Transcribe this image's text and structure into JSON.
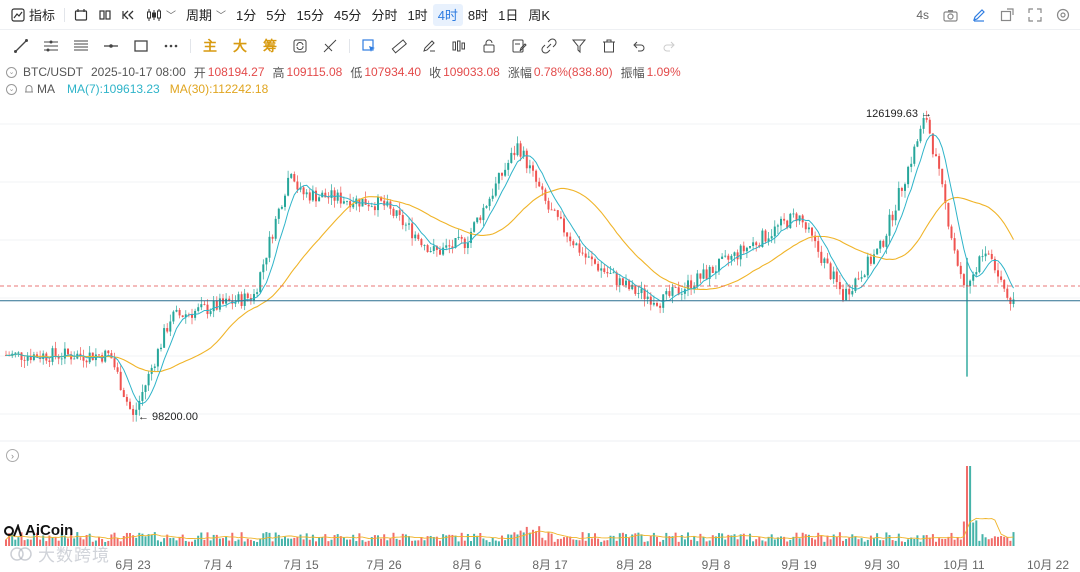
{
  "toolbar": {
    "indicator_label": "指标",
    "period_label": "周期",
    "intervals": [
      "1分",
      "5分",
      "15分",
      "45分",
      "分时",
      "1时",
      "4时",
      "8时",
      "1日",
      "周K"
    ],
    "active_interval": "4时",
    "refresh_label": "4s"
  },
  "drawing_tools": {
    "main_label": "主",
    "big_label": "大",
    "chip_label": "筹"
  },
  "info": {
    "pair": "BTC/USDT",
    "datetime": "2025-10-17 08:00",
    "open_label": "开",
    "open": "108194.27",
    "high_label": "高",
    "high": "109115.08",
    "low_label": "低",
    "low": "107934.40",
    "close_label": "收",
    "close": "109033.08",
    "change_label": "涨幅",
    "change": "0.78%(838.80)",
    "amp_label": "振幅",
    "amp": "1.09%"
  },
  "ma": {
    "label": "MA",
    "ma7": "MA(7):109613.23",
    "ma30": "MA(30):112242.18"
  },
  "annotations": {
    "high_marker": "126199.63 →",
    "low_marker": "← 98200.00"
  },
  "branding": {
    "logo": "AiCoin",
    "watermark": "大数跨境"
  },
  "colors": {
    "up": "#26a69a",
    "down": "#ef5350",
    "ma7": "#2fb4c9",
    "ma30": "#f0b429",
    "accent": "#2f7de1"
  },
  "date_axis": [
    "6月 23",
    "7月 4",
    "7月 15",
    "7月 26",
    "8月 6",
    "8月 17",
    "8月 28",
    "9月 8",
    "9月 19",
    "9月 30",
    "10月 11",
    "10月 22"
  ],
  "chart_data": {
    "type": "candlestick",
    "price_range": [
      96500,
      128000
    ],
    "key_points": [
      {
        "date": "6月 20",
        "price": 104000
      },
      {
        "date": "6月 23",
        "price": 98200
      },
      {
        "date": "6月 28",
        "price": 107500
      },
      {
        "date": "7月 4",
        "price": 108500
      },
      {
        "date": "7月 9",
        "price": 109500
      },
      {
        "date": "7月 14",
        "price": 121500
      },
      {
        "date": "7月 15",
        "price": 119000
      },
      {
        "date": "7月 26",
        "price": 118000
      },
      {
        "date": "8月 2",
        "price": 113500
      },
      {
        "date": "8月 6",
        "price": 114500
      },
      {
        "date": "8月 13",
        "price": 123500
      },
      {
        "date": "8月 17",
        "price": 117500
      },
      {
        "date": "8月 22",
        "price": 113000
      },
      {
        "date": "8月 28",
        "price": 110000
      },
      {
        "date": "9月 1",
        "price": 109000
      },
      {
        "date": "9月 8",
        "price": 112000
      },
      {
        "date": "9月 19",
        "price": 117000
      },
      {
        "date": "9月 25",
        "price": 109500
      },
      {
        "date": "9月 30",
        "price": 114000
      },
      {
        "date": "10月 6",
        "price": 126199.63
      },
      {
        "date": "10月 10",
        "price": 113000
      },
      {
        "date": "10月 11",
        "price": 110000
      },
      {
        "date": "10月 14",
        "price": 114000
      },
      {
        "date": "10月 17",
        "price": 109033.08
      }
    ],
    "reference_lines": {
      "current_price": 109033.08,
      "previous_close_dashed": 110400
    }
  }
}
